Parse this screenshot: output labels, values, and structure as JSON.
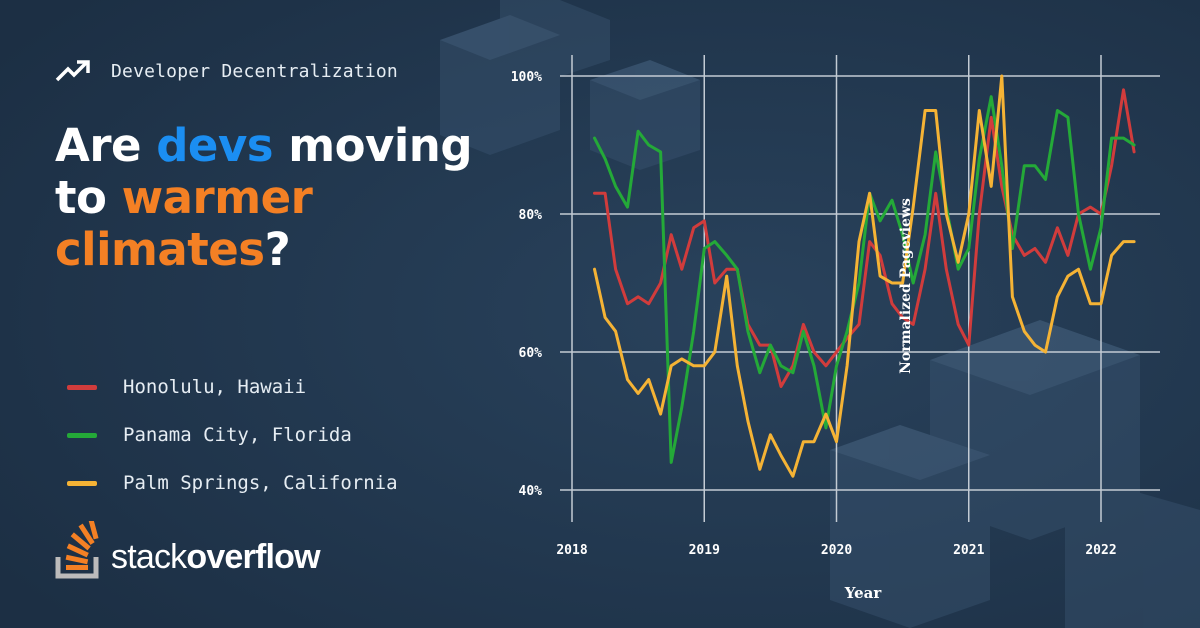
{
  "header": {
    "eyebrow": "Developer Decentralization"
  },
  "headline": {
    "part1": "Are ",
    "part2": "devs",
    "part3": " moving to ",
    "part4": "warmer climates",
    "part5": "?"
  },
  "logo": {
    "word1": "stack",
    "word2": "overflow"
  },
  "colors": {
    "background": "#1f3349",
    "accent_blue": "#1b8ef2",
    "accent_orange": "#f48024",
    "honolulu": "#d13c3c",
    "panama": "#24a938",
    "palm": "#f5b335",
    "grid": "#c3cbd4"
  },
  "icons": {
    "eyebrow_icon": "trending-up-icon",
    "logo_icon": "stack-overflow-logo-icon"
  },
  "chart_data": {
    "type": "line",
    "xlabel": "Year",
    "ylabel": "Normalized Pageviews",
    "xlim": [
      2018,
      2022.4
    ],
    "ylim": [
      40,
      100
    ],
    "xticks": [
      2018,
      2019,
      2020,
      2021,
      2022
    ],
    "xtick_labels": [
      "2018",
      "2019",
      "2020",
      "2021",
      "2022"
    ],
    "yticks": [
      40,
      60,
      80,
      100
    ],
    "ytick_labels": [
      "40%",
      "60%",
      "80%",
      "100%"
    ],
    "grid": true,
    "legend_position": "left",
    "series": [
      {
        "name": "Honolulu, Hawaii",
        "color": "#d13c3c",
        "x": [
          2018.17,
          2018.25,
          2018.33,
          2018.42,
          2018.5,
          2018.58,
          2018.67,
          2018.75,
          2018.83,
          2018.92,
          2019.0,
          2019.08,
          2019.17,
          2019.25,
          2019.33,
          2019.42,
          2019.5,
          2019.58,
          2019.67,
          2019.75,
          2019.83,
          2019.92,
          2020.0,
          2020.08,
          2020.17,
          2020.25,
          2020.33,
          2020.42,
          2020.5,
          2020.58,
          2020.67,
          2020.75,
          2020.83,
          2020.92,
          2021.0,
          2021.08,
          2021.17,
          2021.25,
          2021.33,
          2021.42,
          2021.5,
          2021.58,
          2021.67,
          2021.75,
          2021.83,
          2021.92,
          2022.0,
          2022.08,
          2022.17,
          2022.25
        ],
        "y": [
          83,
          83,
          72,
          67,
          68,
          67,
          70,
          77,
          72,
          78,
          79,
          70,
          72,
          72,
          64,
          61,
          61,
          55,
          58,
          64,
          60,
          58,
          60,
          62,
          64,
          76,
          74,
          67,
          65,
          64,
          72,
          83,
          72,
          64,
          61,
          80,
          94,
          84,
          77,
          74,
          75,
          73,
          78,
          74,
          80,
          81,
          80,
          87,
          98,
          89
        ]
      },
      {
        "name": "Panama City, Florida",
        "color": "#24a938",
        "x": [
          2018.17,
          2018.25,
          2018.33,
          2018.42,
          2018.5,
          2018.58,
          2018.67,
          2018.75,
          2018.83,
          2018.92,
          2019.0,
          2019.08,
          2019.17,
          2019.25,
          2019.33,
          2019.42,
          2019.5,
          2019.58,
          2019.67,
          2019.75,
          2019.83,
          2019.92,
          2020.0,
          2020.08,
          2020.17,
          2020.25,
          2020.33,
          2020.42,
          2020.5,
          2020.58,
          2020.67,
          2020.75,
          2020.83,
          2020.92,
          2021.0,
          2021.08,
          2021.17,
          2021.25,
          2021.33,
          2021.42,
          2021.5,
          2021.58,
          2021.67,
          2021.75,
          2021.83,
          2021.92,
          2022.0,
          2022.08,
          2022.17,
          2022.25
        ],
        "y": [
          91,
          88,
          84,
          81,
          92,
          90,
          89,
          44,
          52,
          63,
          75,
          76,
          74,
          72,
          63,
          57,
          61,
          58,
          57,
          63,
          58,
          49,
          58,
          63,
          70,
          83,
          79,
          82,
          77,
          70,
          77,
          89,
          81,
          72,
          75,
          88,
          97,
          87,
          75,
          87,
          87,
          85,
          95,
          94,
          80,
          72,
          78,
          91,
          91,
          90
        ]
      },
      {
        "name": "Palm Springs, California",
        "color": "#f5b335",
        "x": [
          2018.17,
          2018.25,
          2018.33,
          2018.42,
          2018.5,
          2018.58,
          2018.67,
          2018.75,
          2018.83,
          2018.92,
          2019.0,
          2019.08,
          2019.17,
          2019.25,
          2019.33,
          2019.42,
          2019.5,
          2019.58,
          2019.67,
          2019.75,
          2019.83,
          2019.92,
          2020.0,
          2020.08,
          2020.17,
          2020.25,
          2020.33,
          2020.42,
          2020.5,
          2020.58,
          2020.67,
          2020.75,
          2020.83,
          2020.92,
          2021.0,
          2021.08,
          2021.17,
          2021.25,
          2021.33,
          2021.42,
          2021.5,
          2021.58,
          2021.67,
          2021.75,
          2021.83,
          2021.92,
          2022.0,
          2022.08,
          2022.17,
          2022.25
        ],
        "y": [
          72,
          65,
          63,
          56,
          54,
          56,
          51,
          58,
          59,
          58,
          58,
          60,
          71,
          58,
          50,
          43,
          48,
          45,
          42,
          47,
          47,
          51,
          47,
          58,
          76,
          83,
          71,
          70,
          70,
          81,
          95,
          95,
          80,
          73,
          80,
          95,
          84,
          100,
          68,
          63,
          61,
          60,
          68,
          71,
          72,
          67,
          67,
          74,
          76,
          76
        ]
      }
    ]
  }
}
